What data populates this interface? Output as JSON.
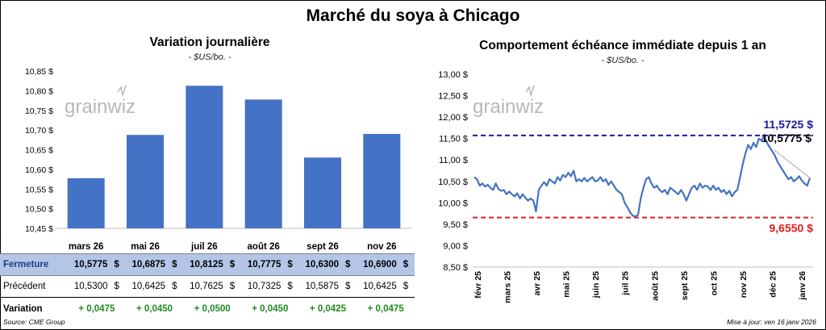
{
  "title": "Marché du soya à Chicago",
  "source": "Source: CME Group",
  "updated": "Mise à jour: ven 16 janv 2026",
  "logo_text": "grainwiz",
  "colors": {
    "bar": "#4472c4",
    "line": "#4472c4",
    "high": "#1a1aa0",
    "low": "#e02020",
    "positive": "#1e8a1e",
    "table_header_bg": "#b4c6e7"
  },
  "table": {
    "rows": [
      {
        "label": "Fermeture",
        "values": [
          "10,5775",
          "10,6875",
          "10,8125",
          "10,7775",
          "10,6300",
          "10,6900"
        ],
        "unit": "$"
      },
      {
        "label": "Précédent",
        "values": [
          "10,5300",
          "10,6425",
          "10,7625",
          "10,7325",
          "10,5875",
          "10,6425"
        ],
        "unit": "$"
      },
      {
        "label": "Variation",
        "values": [
          "+ 0,0475",
          "+ 0,0450",
          "+ 0,0500",
          "+ 0,0450",
          "+ 0,0425",
          "+ 0,0475"
        ],
        "unit": ""
      }
    ]
  },
  "chart_data": [
    {
      "type": "bar",
      "title": "Variation journalière",
      "subtitle": "- $US/bo. -",
      "categories": [
        "mars 26",
        "mai 26",
        "juil 26",
        "août 26",
        "sept 26",
        "nov 26"
      ],
      "values": [
        10.5775,
        10.6875,
        10.8125,
        10.7775,
        10.63,
        10.69
      ],
      "ylim": [
        10.45,
        10.85
      ],
      "yticks": [
        "10,45 $",
        "10,50 $",
        "10,55 $",
        "10,60 $",
        "10,65 $",
        "10,70 $",
        "10,75 $",
        "10,80 $",
        "10,85 $"
      ],
      "grid": false
    },
    {
      "type": "line",
      "title": "Comportement échéance immédiate depuis 1 an",
      "subtitle": "- $US/bo. -",
      "ylim": [
        8.5,
        13.0
      ],
      "yticks": [
        "8,50 $",
        "9,00 $",
        "9,50 $",
        "10,00 $",
        "10,50 $",
        "11,00 $",
        "11,50 $",
        "12,00 $",
        "12,50 $",
        "13,00 $"
      ],
      "xticks": [
        "févr 25",
        "mars 25",
        "avr 25",
        "mai 25",
        "juin 25",
        "juil 25",
        "août 25",
        "sept 25",
        "oct 25",
        "nov 25",
        "déc 25",
        "janv 26"
      ],
      "series": [
        {
          "values": [
            10.6,
            10.55,
            10.4,
            10.45,
            10.38,
            10.42,
            10.35,
            10.3,
            10.45,
            10.32,
            10.28,
            10.3,
            10.2,
            10.26,
            10.2,
            10.15,
            10.22,
            10.1,
            10.2,
            10.12,
            10.05,
            10.1,
            10.05,
            9.8,
            10.3,
            10.4,
            10.48,
            10.4,
            10.55,
            10.5,
            10.45,
            10.6,
            10.52,
            10.65,
            10.6,
            10.7,
            10.62,
            10.75,
            10.5,
            10.55,
            10.5,
            10.58,
            10.5,
            10.55,
            10.6,
            10.5,
            10.52,
            10.6,
            10.5,
            10.55,
            10.42,
            10.5,
            10.4,
            10.3,
            10.25,
            10.2,
            10.0,
            9.9,
            9.78,
            9.7,
            9.68,
            9.72,
            10.1,
            10.35,
            10.55,
            10.6,
            10.45,
            10.35,
            10.4,
            10.3,
            10.25,
            10.3,
            10.2,
            10.35,
            10.3,
            10.25,
            10.2,
            10.3,
            10.2,
            10.05,
            10.2,
            10.35,
            10.4,
            10.3,
            10.45,
            10.35,
            10.4,
            10.38,
            10.3,
            10.4,
            10.3,
            10.35,
            10.25,
            10.3,
            10.2,
            10.28,
            10.15,
            10.25,
            10.3,
            10.6,
            10.9,
            11.15,
            11.35,
            11.25,
            11.4,
            11.3,
            11.5,
            11.45,
            11.56,
            11.4,
            11.3,
            11.2,
            11.1,
            10.95,
            10.85,
            10.75,
            10.65,
            10.55,
            10.6,
            10.5,
            10.55,
            10.62,
            10.52,
            10.45,
            10.4,
            10.58
          ],
          "last": 10.5775
        }
      ],
      "reference_lines": [
        {
          "name": "high",
          "value": 11.5725,
          "label": "11,5725 $"
        },
        {
          "name": "low",
          "value": 9.655,
          "label": "9,6550 $"
        }
      ],
      "last_label": "10,5775 $",
      "grid": false
    }
  ]
}
